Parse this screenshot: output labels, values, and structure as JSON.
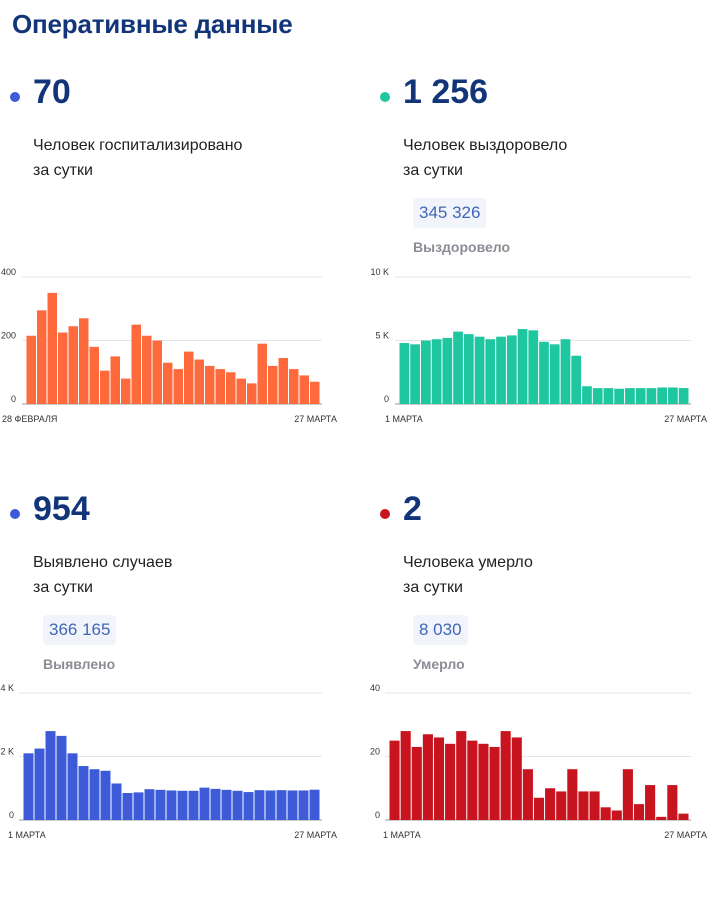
{
  "page": {
    "title": "Оперативные данные"
  },
  "panels": [
    {
      "dot_color": "#3d5bd9",
      "value": "70",
      "desc_line1": "Человек госпитализировано",
      "desc_line2": "за сутки",
      "total": null,
      "total_label": null
    },
    {
      "dot_color": "#1ec7a0",
      "value": "1 256",
      "desc_line1": "Человек выздоровело",
      "desc_line2": "за сутки",
      "total": "345 326",
      "total_label": "Выздоровело"
    },
    {
      "dot_color": "#3d5bd9",
      "value": "954",
      "desc_line1": "Выявлено случаев",
      "desc_line2": "за сутки",
      "total": "366 165",
      "total_label": "Выявлено"
    },
    {
      "dot_color": "#c8141e",
      "value": "2",
      "desc_line1": "Человека умерло",
      "desc_line2": "за сутки",
      "total": "8 030",
      "total_label": "Умерло"
    }
  ],
  "chart_data": [
    {
      "type": "bar",
      "color": "#ff6a3d",
      "ylim": [
        0,
        400
      ],
      "y_ticks": [
        {
          "v": 0,
          "label": "0"
        },
        {
          "v": 200,
          "label": "200"
        },
        {
          "v": 400,
          "label": "400"
        }
      ],
      "x_start_label": "28 ФЕВРАЛЯ",
      "x_end_label": "27 МАРТА",
      "values": [
        215,
        295,
        350,
        225,
        245,
        270,
        180,
        105,
        150,
        80,
        250,
        215,
        200,
        130,
        110,
        165,
        140,
        120,
        110,
        100,
        80,
        65,
        190,
        120,
        145,
        110,
        90,
        70
      ]
    },
    {
      "type": "bar",
      "color": "#1ec7a0",
      "ylim": [
        0,
        10000
      ],
      "y_ticks": [
        {
          "v": 0,
          "label": "0"
        },
        {
          "v": 5000,
          "label": "5 K"
        },
        {
          "v": 10000,
          "label": "10 K"
        }
      ],
      "x_start_label": "1 МАРТА",
      "x_end_label": "27 МАРТА",
      "values": [
        4800,
        4700,
        5000,
        5100,
        5200,
        5700,
        5500,
        5300,
        5100,
        5300,
        5400,
        5900,
        5800,
        4900,
        4700,
        5100,
        3800,
        1400,
        1250,
        1250,
        1200,
        1250,
        1250,
        1250,
        1300,
        1300,
        1256
      ]
    },
    {
      "type": "bar",
      "color": "#3d5bd9",
      "ylim": [
        0,
        4000
      ],
      "y_ticks": [
        {
          "v": 0,
          "label": "0"
        },
        {
          "v": 2000,
          "label": "2 K"
        },
        {
          "v": 4000,
          "label": "4 K"
        }
      ],
      "x_start_label": "1 МАРТА",
      "x_end_label": "27 МАРТА",
      "values": [
        2100,
        2250,
        2800,
        2650,
        2100,
        1700,
        1600,
        1550,
        1150,
        850,
        870,
        970,
        950,
        930,
        920,
        920,
        1020,
        980,
        950,
        920,
        880,
        940,
        930,
        940,
        930,
        930,
        954
      ]
    },
    {
      "type": "bar",
      "color": "#c8141e",
      "ylim": [
        0,
        40
      ],
      "y_ticks": [
        {
          "v": 0,
          "label": "0"
        },
        {
          "v": 20,
          "label": "20"
        },
        {
          "v": 40,
          "label": "40"
        }
      ],
      "x_start_label": "1 МАРТА",
      "x_end_label": "27 МАРТА",
      "values": [
        25,
        28,
        23,
        27,
        26,
        24,
        28,
        25,
        24,
        23,
        28,
        26,
        16,
        7,
        10,
        9,
        16,
        9,
        9,
        4,
        3,
        16,
        5,
        11,
        1,
        11,
        2
      ]
    }
  ]
}
